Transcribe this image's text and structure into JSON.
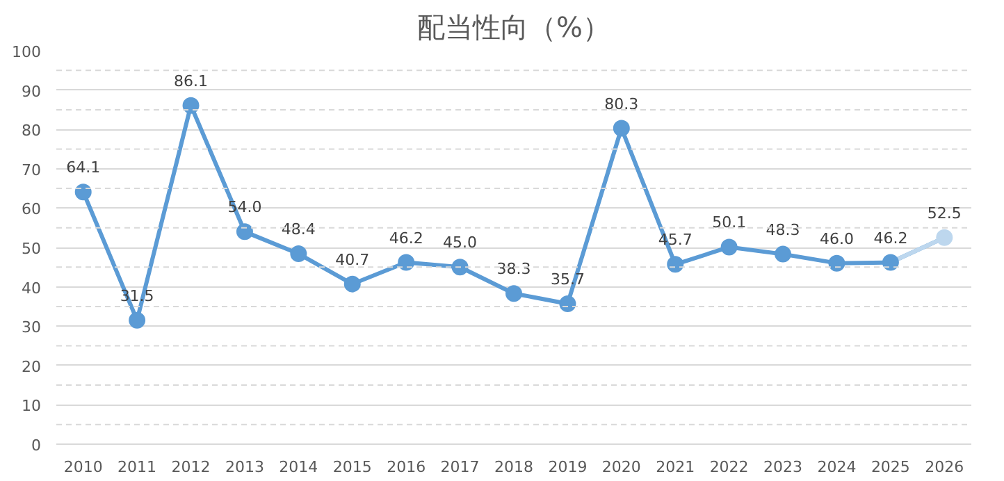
{
  "chart_data": {
    "type": "line",
    "title": "配当性向（%）",
    "categories": [
      "2010",
      "2011",
      "2012",
      "2013",
      "2014",
      "2015",
      "2016",
      "2017",
      "2018",
      "2019",
      "2020",
      "2021",
      "2022",
      "2023",
      "2024",
      "2025",
      "2026"
    ],
    "series": [
      {
        "color": "#5b9bd5",
        "colors": [
          "#5b9bd5",
          "#5b9bd5",
          "#5b9bd5",
          "#5b9bd5",
          "#5b9bd5",
          "#5b9bd5",
          "#5b9bd5",
          "#5b9bd5",
          "#5b9bd5",
          "#5b9bd5",
          "#5b9bd5",
          "#5b9bd5",
          "#5b9bd5",
          "#5b9bd5",
          "#5b9bd5",
          "#5b9bd5",
          "#bdd7ee"
        ],
        "values": [
          64.1,
          31.5,
          86.1,
          54.0,
          48.4,
          40.7,
          46.2,
          45.0,
          38.3,
          35.7,
          80.3,
          45.7,
          50.1,
          48.3,
          46.0,
          46.2,
          52.5
        ],
        "value_labels": [
          "64.1",
          "31.5",
          "86.1",
          "54.0",
          "48.4",
          "40.7",
          "46.2",
          "45.0",
          "38.3",
          "35.7",
          "80.3",
          "45.7",
          "50.1",
          "48.3",
          "46.0",
          "46.2",
          "52.5"
        ]
      }
    ],
    "ylim": [
      0,
      100
    ],
    "yticks": [
      0,
      10,
      20,
      30,
      40,
      50,
      60,
      70,
      80,
      90,
      100
    ],
    "grid": "y",
    "marker": "circle",
    "line_style": "solid"
  }
}
